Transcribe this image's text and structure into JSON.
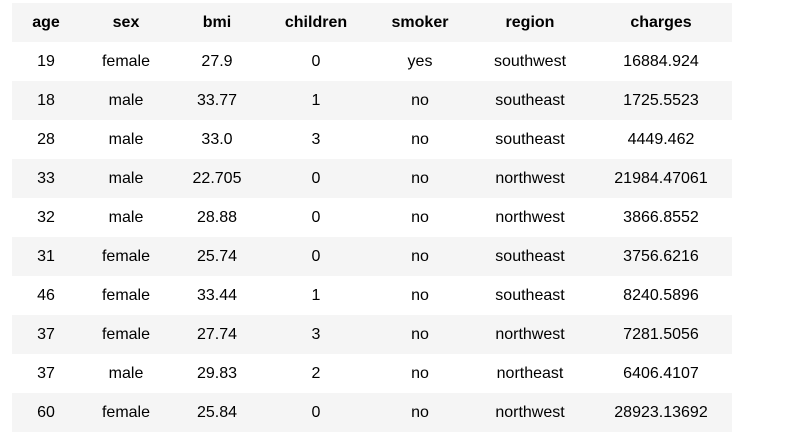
{
  "table": {
    "columns": [
      "age",
      "sex",
      "bmi",
      "children",
      "smoker",
      "region",
      "charges"
    ],
    "rows": [
      [
        "19",
        "female",
        "27.9",
        "0",
        "yes",
        "southwest",
        "16884.924"
      ],
      [
        "18",
        "male",
        "33.77",
        "1",
        "no",
        "southeast",
        "1725.5523"
      ],
      [
        "28",
        "male",
        "33.0",
        "3",
        "no",
        "southeast",
        "4449.462"
      ],
      [
        "33",
        "male",
        "22.705",
        "0",
        "no",
        "northwest",
        "21984.47061"
      ],
      [
        "32",
        "male",
        "28.88",
        "0",
        "no",
        "northwest",
        "3866.8552"
      ],
      [
        "31",
        "female",
        "25.74",
        "0",
        "no",
        "southeast",
        "3756.6216"
      ],
      [
        "46",
        "female",
        "33.44",
        "1",
        "no",
        "southeast",
        "8240.5896"
      ],
      [
        "37",
        "female",
        "27.74",
        "3",
        "no",
        "northwest",
        "7281.5056"
      ],
      [
        "37",
        "male",
        "29.83",
        "2",
        "no",
        "northeast",
        "6406.4107"
      ],
      [
        "60",
        "female",
        "25.84",
        "0",
        "no",
        "northwest",
        "28923.13692"
      ]
    ]
  }
}
